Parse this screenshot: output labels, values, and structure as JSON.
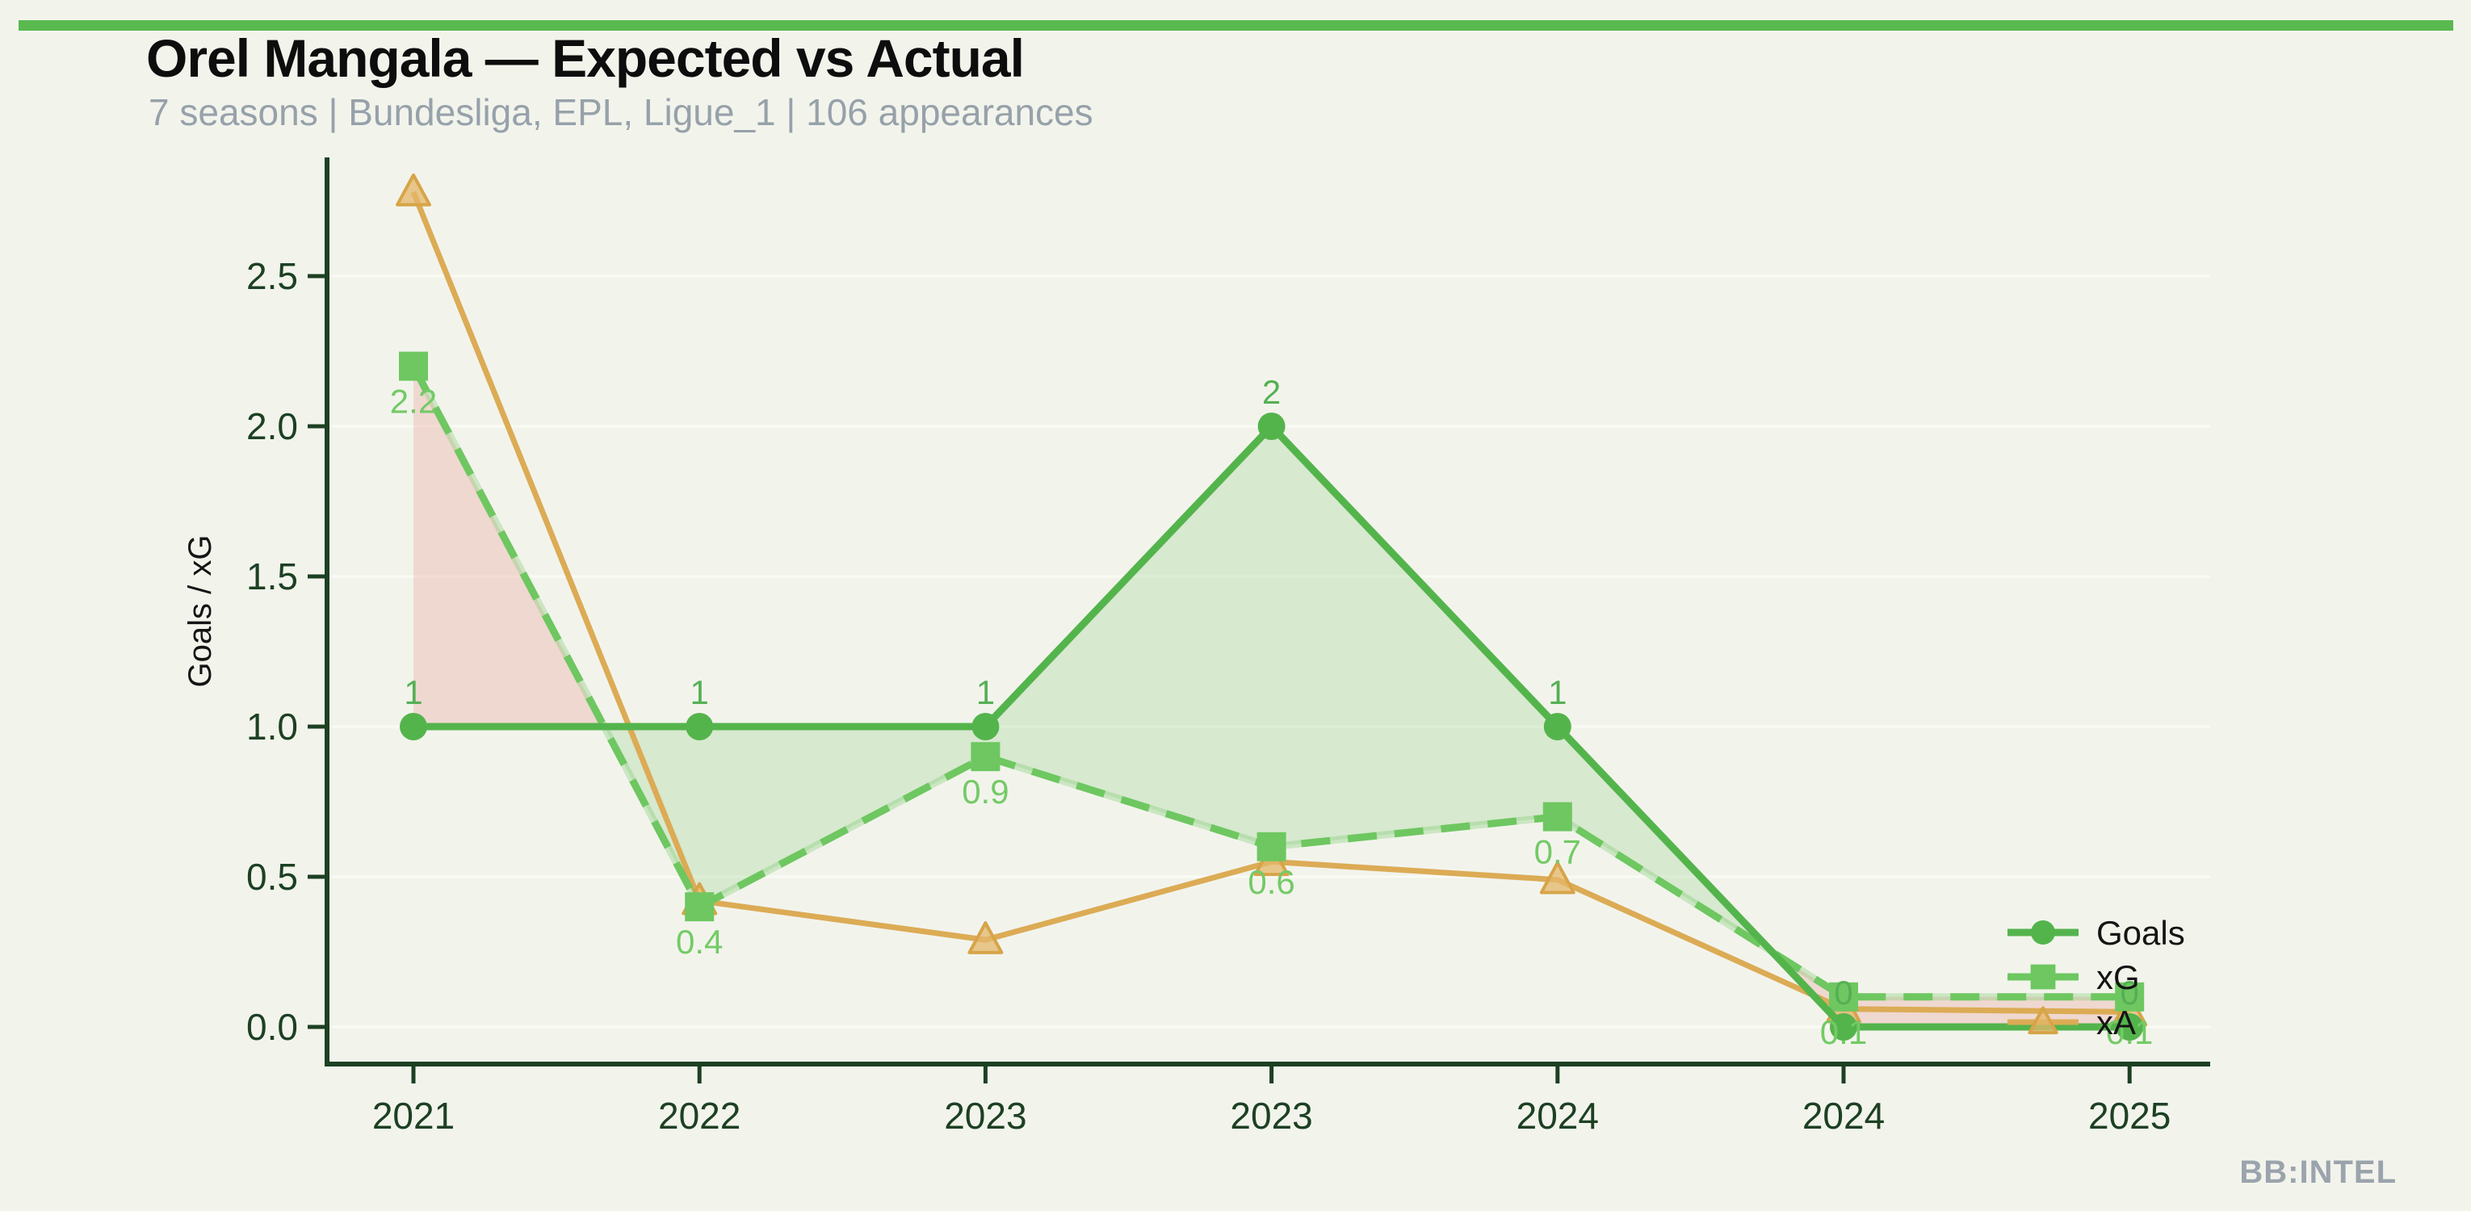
{
  "header": {
    "title": "Orel Mangala — Expected vs Actual",
    "subtitle": "7 seasons | Bundesliga, EPL, Ligue_1 | 106 appearances"
  },
  "watermark": "BB:INTEL",
  "colors": {
    "accent_bar": "#5ab94f",
    "background": "#f2f4ec",
    "axis": "#1d4023",
    "tick_label": "#1d4023",
    "goals_line": "#54b44c",
    "xg_line": "#6ec760",
    "xa_line": "#dcab55",
    "goals_label": "#55b054",
    "xg_label": "#74ca66",
    "fill_over": "rgba(109,192,95,0.20)",
    "fill_under": "rgba(231,136,126,0.26)",
    "subtitle_text": "#97a1aa",
    "watermark_text": "#9ba4ad"
  },
  "chart_data": {
    "type": "line",
    "title": "Orel Mangala — Expected vs Actual",
    "subtitle": "7 seasons | Bundesliga, EPL, Ligue_1 | 106 appearances",
    "categories": [
      "2021",
      "2022",
      "2023",
      "2023",
      "2024",
      "2024",
      "2025"
    ],
    "series": [
      {
        "name": "Goals",
        "values": [
          1,
          1,
          1,
          2,
          1,
          0,
          0
        ],
        "labels": [
          "1",
          "1",
          "1",
          "2",
          "1",
          "0",
          "0"
        ],
        "marker": "circle",
        "style": "solid",
        "color": "#54b44c"
      },
      {
        "name": "xG",
        "values": [
          2.2,
          0.4,
          0.9,
          0.6,
          0.7,
          0.1,
          0.1
        ],
        "labels": [
          "2.2",
          "0.4",
          "0.9",
          "0.6",
          "0.7",
          "0.1",
          "0.1"
        ],
        "marker": "square",
        "style": "dashed",
        "color": "#6ec760"
      },
      {
        "name": "xA",
        "values": [
          2.78,
          0.42,
          0.29,
          0.55,
          0.49,
          0.06,
          0.05
        ],
        "labels": [],
        "marker": "triangle",
        "style": "solid",
        "color": "#dcab55"
      }
    ],
    "xlabel": "",
    "ylabel": "Goals / xG",
    "ylim": [
      0,
      2.9
    ],
    "yticks": [
      0.0,
      0.5,
      1.0,
      1.5,
      2.0,
      2.5
    ],
    "grid": "horizontal-faint",
    "legend_position": "inside-right",
    "legend_entries": [
      "Goals",
      "xG",
      "xA"
    ],
    "shading": "green where Goals >= xG, pink where xG > Goals"
  }
}
